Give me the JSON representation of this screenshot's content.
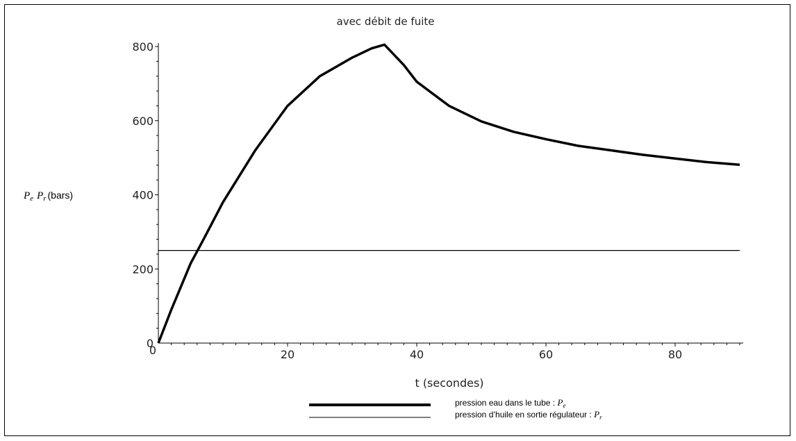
{
  "chart_data": {
    "type": "line",
    "title": "avec débit de fuite",
    "xlabel": "t (secondes)",
    "ylabel": {
      "symbol_1": "P",
      "subscript_1": "e",
      "symbol_2": "P",
      "subscript_2": "r",
      "unit": "(bars)"
    },
    "xlim": [
      0,
      90
    ],
    "ylim": [
      0,
      800
    ],
    "x_ticks": [
      "20",
      "40",
      "60",
      "80"
    ],
    "y_ticks": [
      "0",
      "200",
      "400",
      "600",
      "800"
    ],
    "x_zero_label": "0",
    "grid": false,
    "legend_position": "bottom-center",
    "series": [
      {
        "label_text": "pression eau dans le tube : ",
        "label_symbol": "P",
        "label_subscript": "e",
        "color": "#000000",
        "x": [
          0,
          2,
          5,
          7,
          10,
          15,
          20,
          25,
          30,
          33,
          35,
          38,
          40,
          45,
          50,
          55,
          60,
          65,
          70,
          75,
          80,
          85,
          90
        ],
        "y": [
          0,
          90,
          215,
          280,
          380,
          520,
          640,
          720,
          770,
          795,
          805,
          750,
          705,
          640,
          598,
          570,
          550,
          532,
          520,
          508,
          498,
          488,
          481
        ]
      },
      {
        "label_text": "pression d’huile en sortie régulateur : ",
        "label_symbol": "P",
        "label_subscript": "r",
        "color": "#000000",
        "x": [
          0,
          90
        ],
        "y": [
          250,
          250
        ]
      }
    ]
  }
}
